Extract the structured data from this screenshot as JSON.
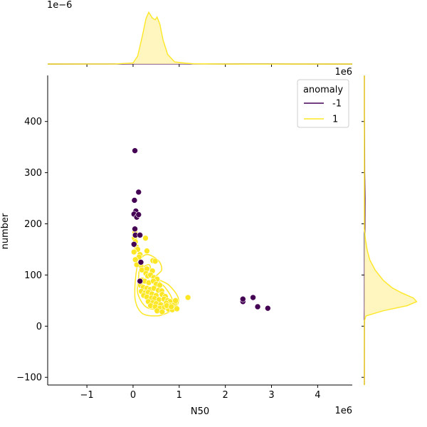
{
  "chart_data": {
    "type": "scatter",
    "title": "",
    "xlabel": "N50",
    "ylabel": "number",
    "x_offset_label": "1e6",
    "y_offset_label_top_marginal": "1e−6",
    "x_offset_label_right_marginal": "1e6",
    "xlim": [
      -1.85,
      4.75
    ],
    "ylim": [
      -115,
      490
    ],
    "xticks": [
      -1,
      0,
      1,
      2,
      3,
      4
    ],
    "xtick_labels": [
      "−1",
      "0",
      "1",
      "2",
      "3",
      "4"
    ],
    "yticks": [
      -100,
      0,
      100,
      200,
      300,
      400
    ],
    "ytick_labels": [
      "−100",
      "0",
      "100",
      "200",
      "300",
      "400"
    ],
    "grid": false,
    "legend": {
      "title": "anomaly",
      "position": "upper right",
      "entries": [
        {
          "label": "-1",
          "color": "#440154"
        },
        {
          "label": "1",
          "color": "#fde725"
        }
      ]
    },
    "colors": {
      "anomaly_neg": "#440154",
      "normal": "#fde725",
      "fill": "#fef4b3"
    },
    "series": [
      {
        "name": "-1",
        "x": [
          0.04,
          0.12,
          0.03,
          0.06,
          0.02,
          0.08,
          0.12,
          0.04,
          0.05,
          0.15,
          0.17,
          0.02,
          0.15,
          2.38,
          2.38,
          2.6,
          2.7,
          2.92
        ],
        "y": [
          343,
          262,
          246,
          225,
          219,
          213,
          218,
          190,
          178,
          178,
          125,
          160,
          88,
          48,
          53,
          56,
          38,
          35
        ]
      },
      {
        "name": "1",
        "x": [
          0.04,
          0.03,
          0.05,
          0.07,
          0.1,
          0.15,
          0.02,
          0.13,
          0.27,
          0.3,
          0.43,
          0.48,
          0.17,
          0.19,
          0.3,
          0.42,
          0.28,
          0.32,
          0.38,
          0.45,
          0.52,
          0.2,
          0.25,
          0.34,
          0.44,
          0.5,
          0.58,
          0.16,
          0.22,
          0.3,
          0.37,
          0.45,
          0.55,
          0.62,
          0.18,
          0.26,
          0.33,
          0.41,
          0.5,
          0.63,
          0.7,
          0.23,
          0.3,
          0.4,
          0.47,
          0.56,
          0.67,
          0.75,
          0.8,
          0.33,
          0.43,
          0.5,
          0.6,
          0.72,
          0.82,
          0.9,
          0.93,
          0.38,
          0.48,
          0.58,
          0.68,
          0.77,
          0.85,
          0.95,
          0.52,
          0.63,
          0.73,
          0.83,
          0.92,
          1.19,
          0.05,
          0.08
        ],
        "y": [
          183,
          172,
          165,
          155,
          150,
          140,
          145,
          135,
          172,
          147,
          128,
          127,
          118,
          110,
          112,
          108,
          103,
          98,
          100,
          95,
          92,
          90,
          88,
          85,
          88,
          82,
          80,
          80,
          76,
          74,
          72,
          74,
          70,
          69,
          68,
          65,
          66,
          63,
          60,
          62,
          58,
          60,
          57,
          55,
          54,
          52,
          53,
          50,
          48,
          48,
          46,
          44,
          42,
          45,
          40,
          43,
          36,
          40,
          38,
          35,
          37,
          33,
          32,
          34,
          30,
          28,
          40,
          38,
          50,
          56,
          130,
          120
        ]
      }
    ],
    "density_contours": {
      "series": "1",
      "levels": [
        {
          "points": [
            [
              0.12,
              125
            ],
            [
              0.3,
              140
            ],
            [
              0.55,
              128
            ],
            [
              0.62,
              110
            ],
            [
              0.5,
              95
            ],
            [
              0.78,
              80
            ],
            [
              0.98,
              55
            ],
            [
              0.92,
              36
            ],
            [
              0.72,
              25
            ],
            [
              0.5,
              20
            ],
            [
              0.2,
              25
            ],
            [
              0.05,
              50
            ],
            [
              0.05,
              90
            ]
          ]
        },
        {
          "points": [
            [
              0.15,
              110
            ],
            [
              0.35,
              120
            ],
            [
              0.42,
              100
            ],
            [
              0.7,
              75
            ],
            [
              0.85,
              50
            ],
            [
              0.7,
              35
            ],
            [
              0.45,
              33
            ],
            [
              0.25,
              40
            ],
            [
              0.1,
              65
            ],
            [
              0.12,
              95
            ]
          ]
        }
      ]
    },
    "marginal_x": {
      "series": [
        {
          "name": "-1",
          "points": [
            [
              -1.85,
              0
            ],
            [
              -0.5,
              0.0005
            ],
            [
              0.1,
              0.003
            ],
            [
              1.0,
              0.002
            ],
            [
              2.0,
              0.0015
            ],
            [
              2.6,
              0.003
            ],
            [
              3.3,
              0.001
            ],
            [
              4.75,
              0
            ]
          ]
        },
        {
          "name": "1",
          "points": [
            [
              -1.85,
              0
            ],
            [
              -0.4,
              0.001
            ],
            [
              0.0,
              0.02
            ],
            [
              0.1,
              0.15
            ],
            [
              0.2,
              0.52
            ],
            [
              0.28,
              0.85
            ],
            [
              0.34,
              0.97
            ],
            [
              0.42,
              0.86
            ],
            [
              0.48,
              0.83
            ],
            [
              0.52,
              0.88
            ],
            [
              0.58,
              0.75
            ],
            [
              0.65,
              0.45
            ],
            [
              0.75,
              0.18
            ],
            [
              0.9,
              0.04
            ],
            [
              1.1,
              0.02
            ],
            [
              1.3,
              0.005
            ],
            [
              2.0,
              0.0
            ],
            [
              4.75,
              0
            ]
          ]
        }
      ],
      "ymax": 1.0
    },
    "marginal_y": {
      "series": [
        {
          "name": "-1",
          "points": [
            [
              -115,
              0
            ],
            [
              20,
              0.001
            ],
            [
              50,
              0.004
            ],
            [
              120,
              0.003
            ],
            [
              200,
              0.01
            ],
            [
              250,
              0.012
            ],
            [
              300,
              0.005
            ],
            [
              350,
              0.004
            ],
            [
              420,
              0.0
            ],
            [
              490,
              0
            ]
          ]
        },
        {
          "name": "1",
          "points": [
            [
              -115,
              0
            ],
            [
              10,
              0.0
            ],
            [
              20,
              0.03
            ],
            [
              30,
              0.35
            ],
            [
              40,
              0.8
            ],
            [
              48,
              0.98
            ],
            [
              55,
              0.92
            ],
            [
              65,
              0.7
            ],
            [
              75,
              0.52
            ],
            [
              90,
              0.35
            ],
            [
              110,
              0.2
            ],
            [
              130,
              0.1
            ],
            [
              150,
              0.05
            ],
            [
              170,
              0.02
            ],
            [
              190,
              0.0
            ],
            [
              490,
              0
            ]
          ]
        }
      ],
      "xmax": 1.0
    }
  }
}
